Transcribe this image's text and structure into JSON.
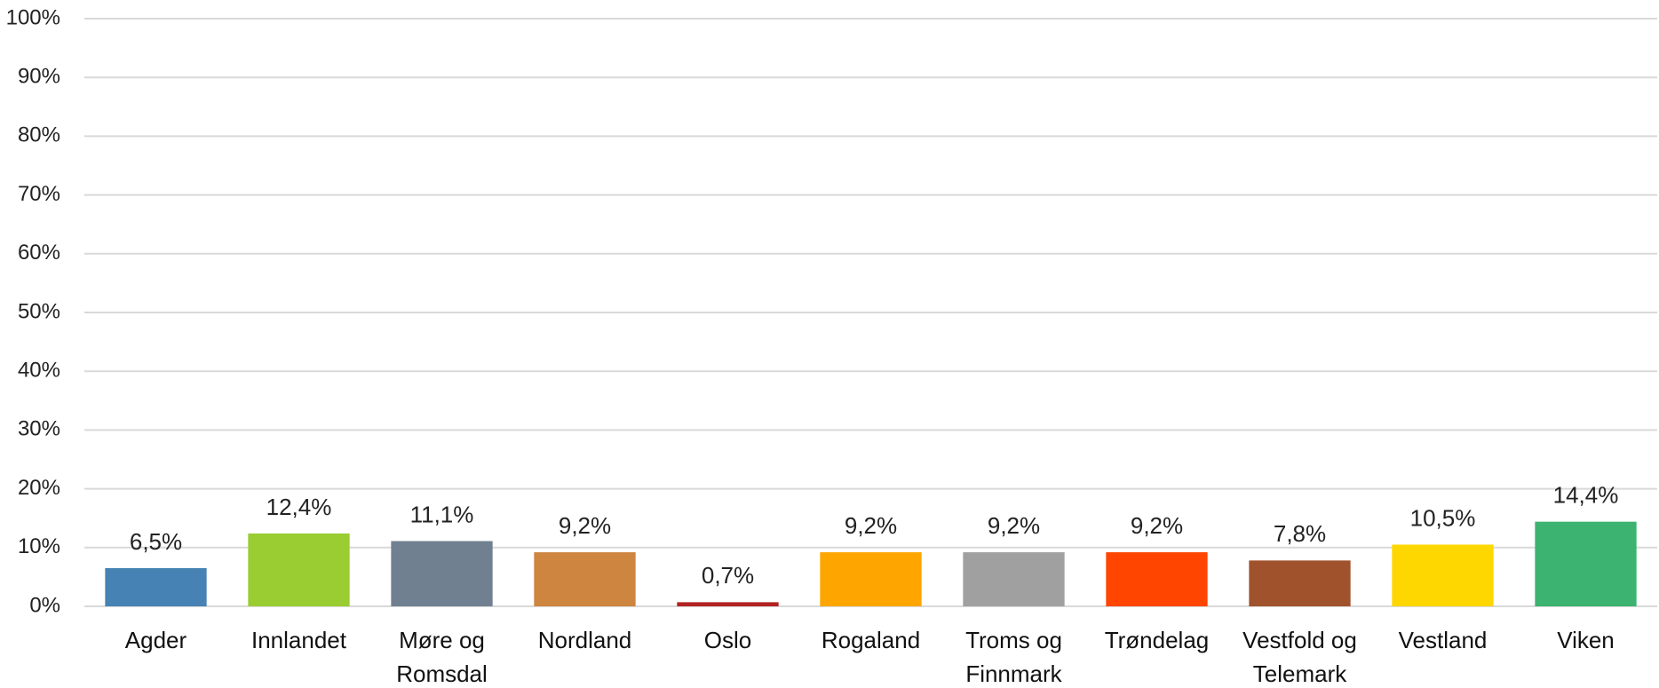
{
  "chart_data": {
    "type": "bar",
    "categories": [
      "Agder",
      "Innlandet",
      "Møre og Romsdal",
      "Nordland",
      "Oslo",
      "Rogaland",
      "Troms og Finnmark",
      "Trøndelag",
      "Vestfold og Telemark",
      "Vestland",
      "Viken"
    ],
    "values": [
      6.5,
      12.4,
      11.1,
      9.2,
      0.7,
      9.2,
      9.2,
      9.2,
      7.8,
      10.5,
      14.4
    ],
    "value_labels": [
      "6,5%",
      "12,4%",
      "11,1%",
      "9,2%",
      "0,7%",
      "9,2%",
      "9,2%",
      "9,2%",
      "7,8%",
      "10,5%",
      "14,4%"
    ],
    "colors": [
      "#4682b4",
      "#9acd32",
      "#708090",
      "#cd853f",
      "#b22222",
      "#ffa500",
      "#a0a0a0",
      "#ff4500",
      "#a0522d",
      "#ffd700",
      "#3cb371"
    ],
    "ylim": [
      0,
      100
    ],
    "yticks": [
      {
        "value": 0,
        "label": "0%"
      },
      {
        "value": 10,
        "label": "10%"
      },
      {
        "value": 20,
        "label": "20%"
      },
      {
        "value": 30,
        "label": "30%"
      },
      {
        "value": 40,
        "label": "40%"
      },
      {
        "value": 50,
        "label": "50%"
      },
      {
        "value": 60,
        "label": "60%"
      },
      {
        "value": 70,
        "label": "70%"
      },
      {
        "value": 80,
        "label": "80%"
      },
      {
        "value": 90,
        "label": "90%"
      },
      {
        "value": 100,
        "label": "100%"
      }
    ],
    "grid": true
  }
}
